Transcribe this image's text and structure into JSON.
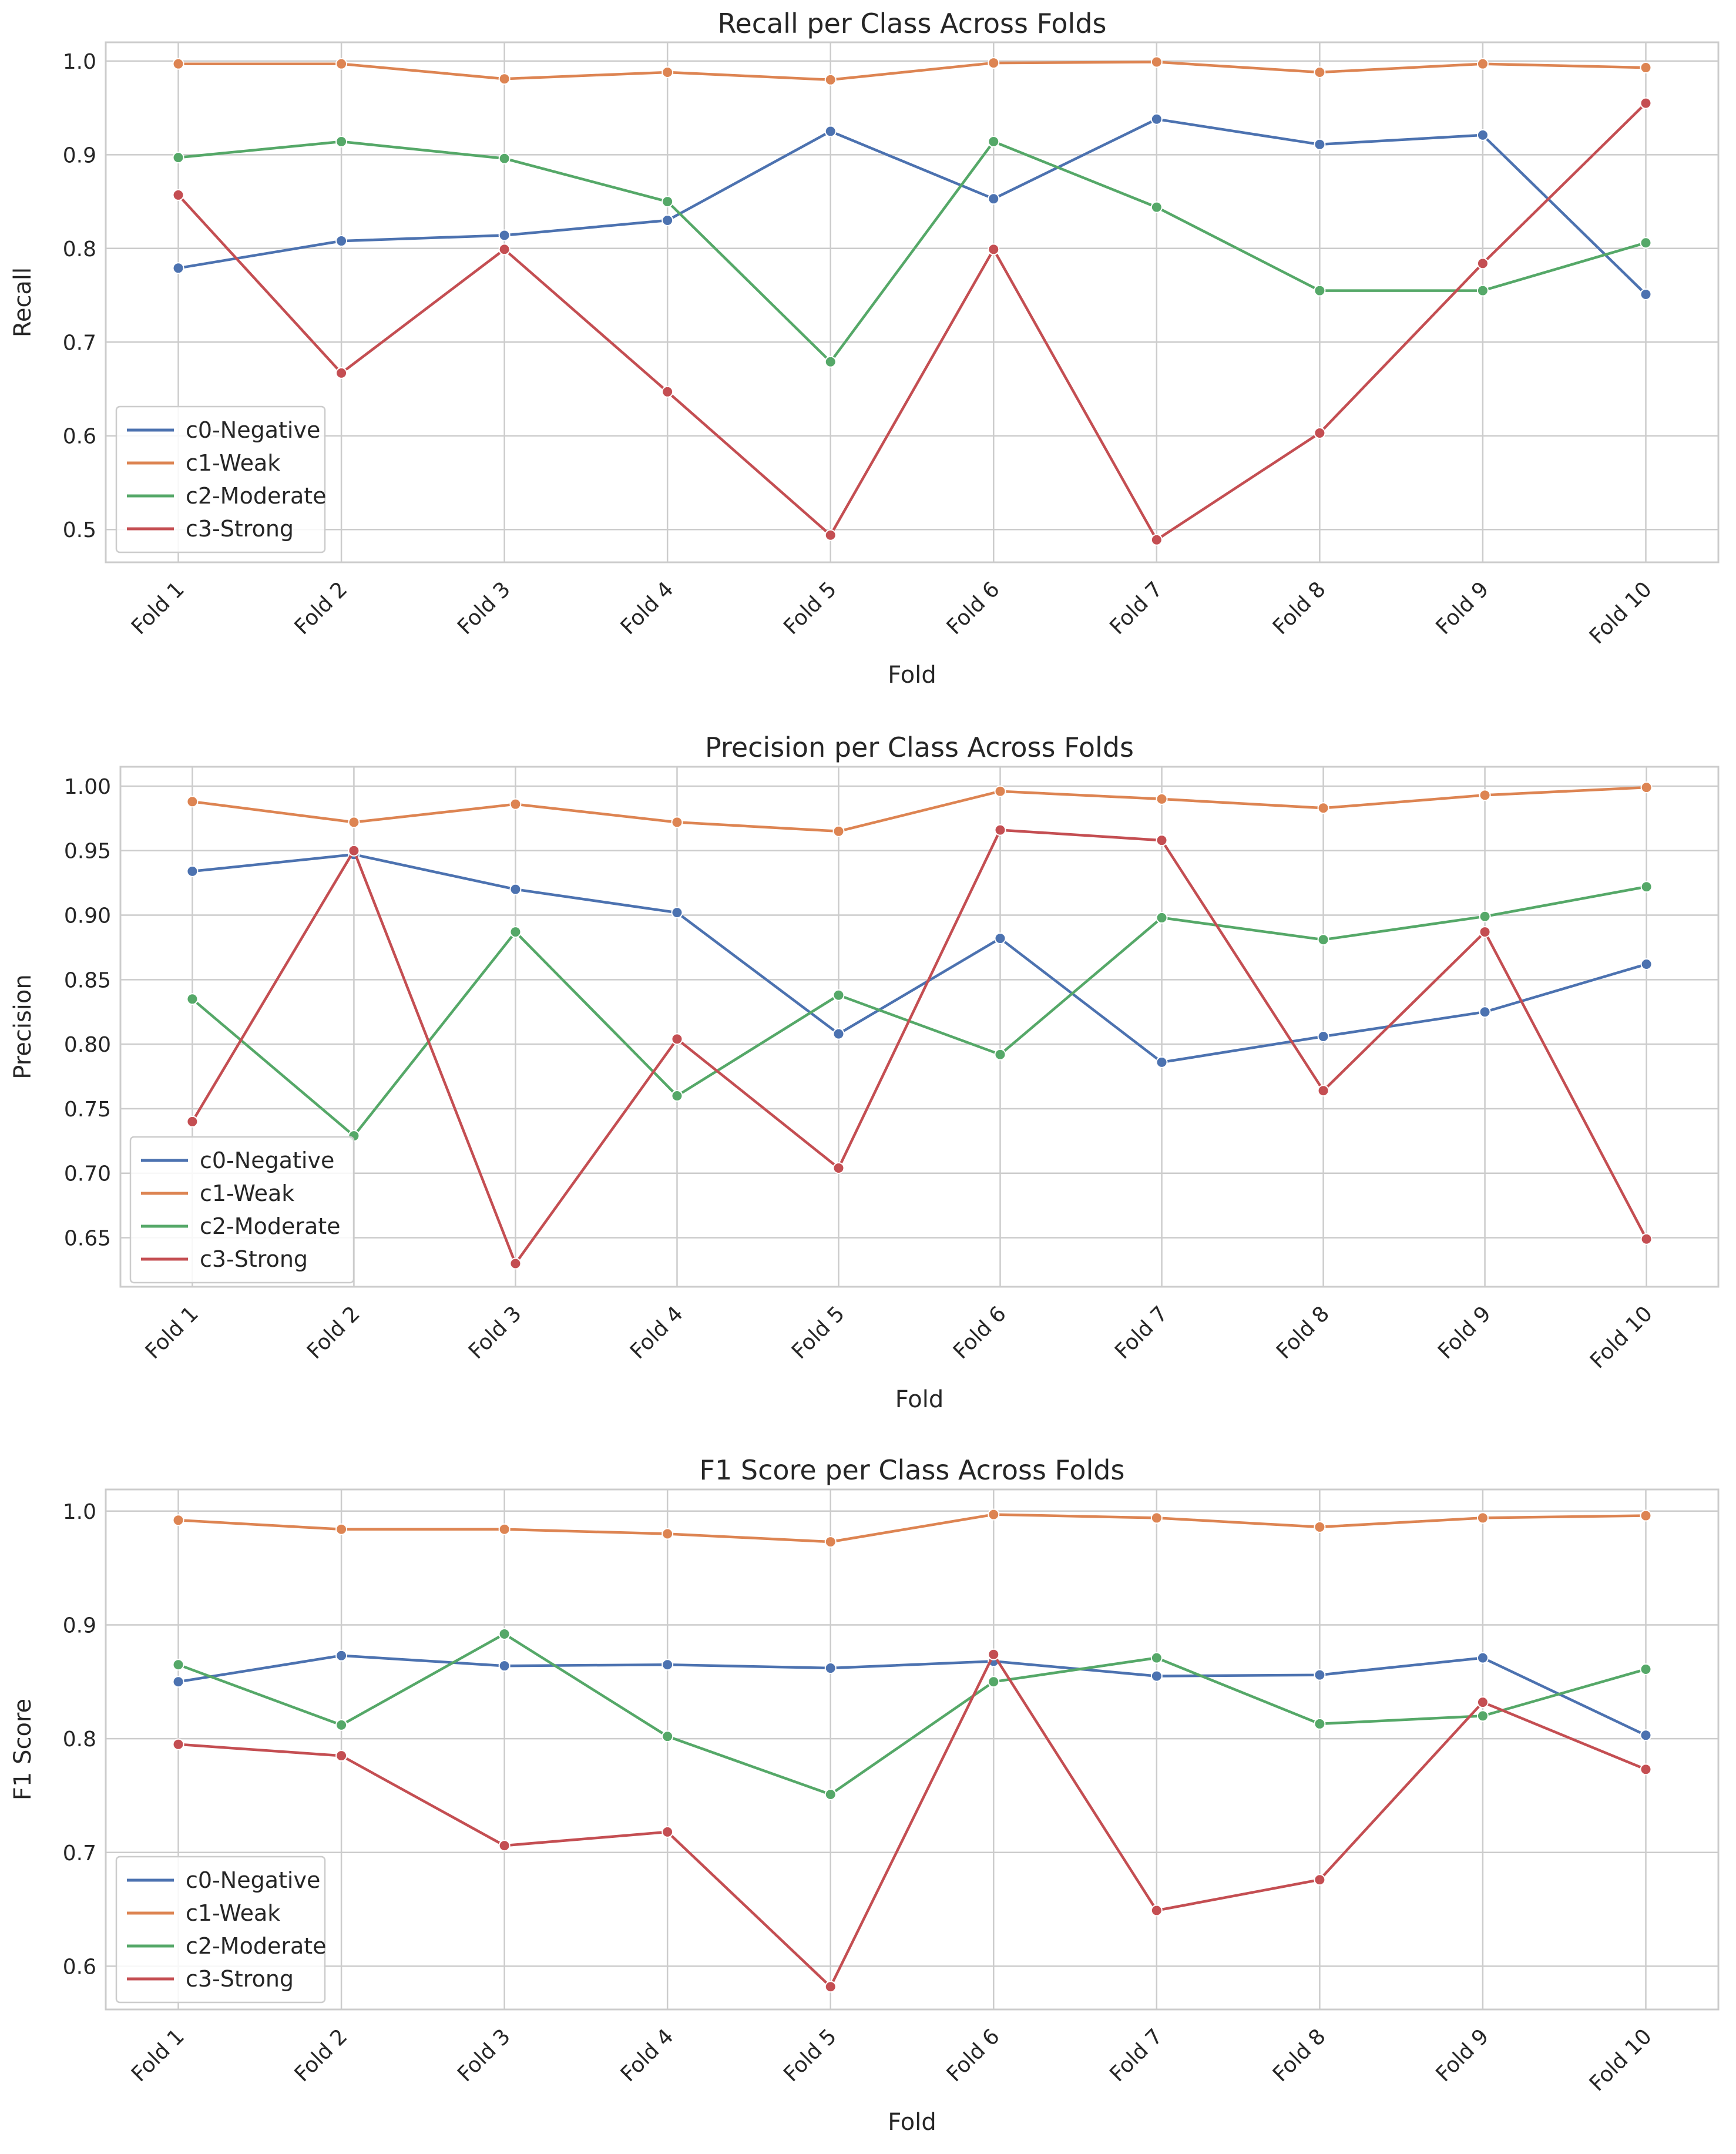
{
  "chart_data": [
    {
      "type": "line",
      "title": "Recall per Class Across Folds",
      "xlabel": "Fold",
      "ylabel": "Recall",
      "categories": [
        "Fold 1",
        "Fold 2",
        "Fold 3",
        "Fold 4",
        "Fold 5",
        "Fold 6",
        "Fold 7",
        "Fold 8",
        "Fold 9",
        "Fold 10"
      ],
      "ylim": [
        0.465,
        1.02
      ],
      "yticks": [
        0.5,
        0.6,
        0.7,
        0.8,
        0.9,
        1.0
      ],
      "ytick_labels": [
        "0.5",
        "0.6",
        "0.7",
        "0.8",
        "0.9",
        "1.0"
      ],
      "grid": true,
      "legend_position": "lower-left",
      "series": [
        {
          "name": "c0-Negative",
          "color": "#4c72b0",
          "values": [
            0.779,
            0.808,
            0.814,
            0.83,
            0.925,
            0.853,
            0.938,
            0.911,
            0.921,
            0.751
          ]
        },
        {
          "name": "c1-Weak",
          "color": "#dd8452",
          "values": [
            0.997,
            0.997,
            0.981,
            0.988,
            0.98,
            0.998,
            0.999,
            0.988,
            0.997,
            0.993
          ]
        },
        {
          "name": "c2-Moderate",
          "color": "#55a868",
          "values": [
            0.897,
            0.914,
            0.896,
            0.85,
            0.679,
            0.914,
            0.844,
            0.755,
            0.755,
            0.806
          ]
        },
        {
          "name": "c3-Strong",
          "color": "#c44e52",
          "values": [
            0.857,
            0.667,
            0.799,
            0.647,
            0.494,
            0.799,
            0.489,
            0.603,
            0.784,
            0.955
          ]
        }
      ]
    },
    {
      "type": "line",
      "title": "Precision per Class Across Folds",
      "xlabel": "Fold",
      "ylabel": "Precision",
      "categories": [
        "Fold 1",
        "Fold 2",
        "Fold 3",
        "Fold 4",
        "Fold 5",
        "Fold 6",
        "Fold 7",
        "Fold 8",
        "Fold 9",
        "Fold 10"
      ],
      "ylim": [
        0.612,
        1.015
      ],
      "yticks": [
        0.65,
        0.7,
        0.75,
        0.8,
        0.85,
        0.9,
        0.95,
        1.0
      ],
      "ytick_labels": [
        "0.65",
        "0.70",
        "0.75",
        "0.80",
        "0.85",
        "0.90",
        "0.95",
        "1.00"
      ],
      "grid": true,
      "legend_position": "lower-left",
      "series": [
        {
          "name": "c0-Negative",
          "color": "#4c72b0",
          "values": [
            0.934,
            0.947,
            0.92,
            0.902,
            0.808,
            0.882,
            0.786,
            0.806,
            0.825,
            0.862
          ]
        },
        {
          "name": "c1-Weak",
          "color": "#dd8452",
          "values": [
            0.988,
            0.972,
            0.986,
            0.972,
            0.965,
            0.996,
            0.99,
            0.983,
            0.993,
            0.999
          ]
        },
        {
          "name": "c2-Moderate",
          "color": "#55a868",
          "values": [
            0.835,
            0.729,
            0.887,
            0.76,
            0.838,
            0.792,
            0.898,
            0.881,
            0.899,
            0.922
          ]
        },
        {
          "name": "c3-Strong",
          "color": "#c44e52",
          "values": [
            0.74,
            0.95,
            0.63,
            0.804,
            0.704,
            0.966,
            0.958,
            0.764,
            0.887,
            0.649
          ]
        }
      ]
    },
    {
      "type": "line",
      "title": "F1 Score per Class Across Folds",
      "xlabel": "Fold",
      "ylabel": "F1 Score",
      "categories": [
        "Fold 1",
        "Fold 2",
        "Fold 3",
        "Fold 4",
        "Fold 5",
        "Fold 6",
        "Fold 7",
        "Fold 8",
        "Fold 9",
        "Fold 10"
      ],
      "ylim": [
        0.562,
        1.019
      ],
      "yticks": [
        0.6,
        0.7,
        0.8,
        0.9,
        1.0
      ],
      "ytick_labels": [
        "0.6",
        "0.7",
        "0.8",
        "0.9",
        "1.0"
      ],
      "grid": true,
      "legend_position": "lower-left",
      "series": [
        {
          "name": "c0-Negative",
          "color": "#4c72b0",
          "values": [
            0.85,
            0.873,
            0.864,
            0.865,
            0.862,
            0.868,
            0.855,
            0.856,
            0.871,
            0.803
          ]
        },
        {
          "name": "c1-Weak",
          "color": "#dd8452",
          "values": [
            0.992,
            0.984,
            0.984,
            0.98,
            0.973,
            0.997,
            0.994,
            0.986,
            0.994,
            0.996
          ]
        },
        {
          "name": "c2-Moderate",
          "color": "#55a868",
          "values": [
            0.865,
            0.812,
            0.892,
            0.802,
            0.751,
            0.85,
            0.871,
            0.813,
            0.82,
            0.861
          ]
        },
        {
          "name": "c3-Strong",
          "color": "#c44e52",
          "values": [
            0.795,
            0.785,
            0.706,
            0.718,
            0.582,
            0.874,
            0.649,
            0.676,
            0.832,
            0.773
          ]
        }
      ]
    }
  ]
}
